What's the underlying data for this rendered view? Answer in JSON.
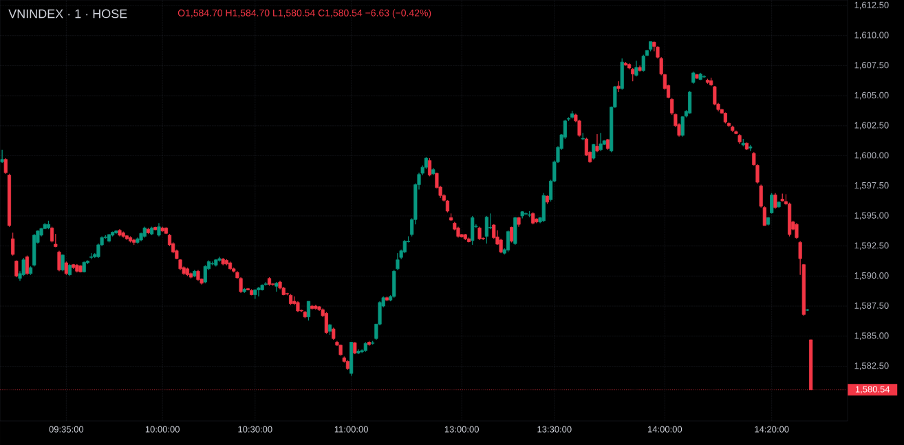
{
  "chart_data": {
    "type": "candlestick",
    "title": "VNINDEX · 1 · HOSE",
    "subtitle": "O1,584.70 H1,584.70 L1,580.54 C1,580.54 −6.63 (−0.42%)",
    "categories": [
      null,
      null,
      null,
      null,
      null,
      null,
      null,
      null,
      null,
      null,
      null,
      null,
      null,
      null,
      null,
      null,
      null,
      null,
      "09:35:00",
      null,
      null,
      null,
      null,
      null,
      null,
      null,
      null,
      null,
      null,
      null,
      null,
      null,
      null,
      null,
      null,
      null,
      null,
      null,
      null,
      null,
      null,
      null,
      null,
      null,
      null,
      "10:00:00",
      null,
      null,
      null,
      null,
      null,
      null,
      null,
      null,
      null,
      null,
      null,
      null,
      null,
      null,
      null,
      null,
      null,
      null,
      null,
      null,
      null,
      null,
      null,
      null,
      null,
      "10:30:00",
      null,
      null,
      null,
      null,
      null,
      null,
      null,
      null,
      null,
      null,
      null,
      null,
      null,
      null,
      null,
      null,
      null,
      null,
      null,
      null,
      null,
      null,
      null,
      null,
      null,
      null,
      "11:00:00",
      null,
      null,
      null,
      null,
      null,
      null,
      null,
      null,
      null,
      null,
      null,
      null,
      null,
      null,
      null,
      null,
      null,
      null,
      null,
      null,
      null,
      null,
      null,
      null,
      null,
      null,
      null,
      null,
      null,
      null,
      "13:00:00",
      null,
      null,
      null,
      null,
      null,
      null,
      null,
      null,
      null,
      null,
      null,
      null,
      null,
      null,
      null,
      null,
      null,
      null,
      null,
      null,
      null,
      null,
      null,
      null,
      null,
      "13:30:00",
      null,
      null,
      null,
      null,
      null,
      null,
      null,
      null,
      null,
      null,
      null,
      null,
      null,
      null,
      null,
      null,
      null,
      null,
      null,
      null,
      null,
      null,
      null,
      null,
      null,
      null,
      null,
      null,
      null,
      null,
      "14:00:00",
      null,
      null,
      null,
      null,
      null,
      null,
      null,
      null,
      null,
      null,
      null,
      null,
      null,
      null,
      null,
      null,
      null,
      null,
      null,
      null,
      null,
      null,
      null,
      null,
      null,
      null,
      null,
      null,
      null,
      "14:20:00",
      null,
      null,
      null,
      null,
      null,
      null,
      null,
      null,
      null,
      null,
      null
    ],
    "ohlc": [
      [
        1599.5,
        1600.5,
        1599.4,
        1599.7
      ],
      [
        1599.7,
        1599.8,
        1598.5,
        1598.6
      ],
      [
        1598.4,
        1598.5,
        1594.1,
        1594.2
      ],
      [
        1593.1,
        1593.6,
        1591.7,
        1591.8
      ],
      [
        1591.25,
        1591.3,
        1589.9,
        1590.0
      ],
      [
        1589.8,
        1590.4,
        1589.6,
        1590.2
      ],
      [
        1590.1,
        1591.5,
        1590.0,
        1591.35
      ],
      [
        1591.6,
        1591.7,
        1590.1,
        1590.2
      ],
      [
        1590.2,
        1590.8,
        1590.1,
        1590.7
      ],
      [
        1590.9,
        1593.5,
        1590.8,
        1593.4
      ],
      [
        1592.8,
        1593.8,
        1592.7,
        1593.75
      ],
      [
        1593.4,
        1594.0,
        1593.3,
        1593.95
      ],
      [
        1593.95,
        1594.4,
        1593.9,
        1594.3
      ],
      [
        1594.0,
        1594.6,
        1593.9,
        1594.3
      ],
      [
        1594.0,
        1594.1,
        1592.8,
        1592.9
      ],
      [
        1592.65,
        1593.5,
        1592.4,
        1592.45
      ],
      [
        1592.0,
        1592.1,
        1590.4,
        1590.5
      ],
      [
        1590.5,
        1591.8,
        1590.4,
        1591.75
      ],
      [
        1591.1,
        1591.2,
        1590.1,
        1590.2
      ],
      [
        1590.1,
        1591.0,
        1590.0,
        1590.9
      ],
      [
        1590.95,
        1591.0,
        1590.6,
        1590.7
      ],
      [
        1590.9,
        1591.0,
        1590.3,
        1590.4
      ],
      [
        1590.85,
        1590.9,
        1590.3,
        1590.35
      ],
      [
        1590.35,
        1591.2,
        1590.3,
        1591.15
      ],
      [
        1591.1,
        1591.3,
        1591.0,
        1591.25
      ],
      [
        1591.55,
        1591.9,
        1591.4,
        1591.6
      ],
      [
        1591.6,
        1591.9,
        1591.5,
        1591.8
      ],
      [
        1591.6,
        1592.7,
        1591.5,
        1592.6
      ],
      [
        1592.6,
        1593.3,
        1592.5,
        1593.2
      ],
      [
        1593.2,
        1593.4,
        1593.1,
        1593.25
      ],
      [
        1592.9,
        1593.5,
        1592.8,
        1593.45
      ],
      [
        1593.4,
        1593.7,
        1593.3,
        1593.65
      ],
      [
        1593.6,
        1593.8,
        1593.5,
        1593.75
      ],
      [
        1593.8,
        1593.9,
        1593.3,
        1593.4
      ],
      [
        1593.6,
        1593.7,
        1593.2,
        1593.3
      ],
      [
        1593.35,
        1593.4,
        1593.0,
        1593.1
      ],
      [
        1593.2,
        1593.3,
        1592.8,
        1592.9
      ],
      [
        1593.0,
        1593.1,
        1592.6,
        1592.8
      ],
      [
        1592.8,
        1593.2,
        1592.7,
        1593.1
      ],
      [
        1593.0,
        1593.6,
        1592.9,
        1593.55
      ],
      [
        1593.3,
        1594.1,
        1593.2,
        1594.0
      ],
      [
        1593.9,
        1594.0,
        1593.5,
        1593.6
      ],
      [
        1593.5,
        1594.1,
        1593.4,
        1594.0
      ],
      [
        1594.05,
        1594.1,
        1593.8,
        1593.85
      ],
      [
        1593.4,
        1594.4,
        1593.3,
        1594.1
      ],
      [
        1594.0,
        1594.1,
        1593.7,
        1593.75
      ],
      [
        1594.0,
        1594.05,
        1593.5,
        1593.55
      ],
      [
        1593.4,
        1593.5,
        1592.5,
        1592.6
      ],
      [
        1592.7,
        1592.8,
        1591.9,
        1592.0
      ],
      [
        1592.1,
        1592.2,
        1591.4,
        1591.45
      ],
      [
        1591.35,
        1591.4,
        1590.5,
        1590.6
      ],
      [
        1590.7,
        1590.8,
        1590.1,
        1590.2
      ],
      [
        1590.6,
        1590.7,
        1590.0,
        1590.1
      ],
      [
        1590.2,
        1590.3,
        1589.8,
        1589.9
      ],
      [
        1590.0,
        1590.5,
        1589.9,
        1590.4
      ],
      [
        1590.4,
        1590.5,
        1589.6,
        1589.7
      ],
      [
        1589.75,
        1589.8,
        1589.3,
        1589.4
      ],
      [
        1589.5,
        1590.9,
        1589.4,
        1590.8
      ],
      [
        1590.6,
        1591.3,
        1590.5,
        1591.2
      ],
      [
        1591.0,
        1591.2,
        1590.9,
        1591.05
      ],
      [
        1590.9,
        1591.4,
        1590.8,
        1591.35
      ],
      [
        1591.3,
        1591.6,
        1591.2,
        1591.45
      ],
      [
        1591.4,
        1591.5,
        1590.9,
        1591.0
      ],
      [
        1591.3,
        1591.4,
        1590.9,
        1591.0
      ],
      [
        1591.1,
        1591.2,
        1590.5,
        1590.6
      ],
      [
        1590.6,
        1590.7,
        1590.3,
        1590.4
      ],
      [
        1590.3,
        1590.4,
        1589.8,
        1589.85
      ],
      [
        1589.8,
        1589.9,
        1588.6,
        1588.7
      ],
      [
        1588.7,
        1589.0,
        1588.6,
        1588.9
      ],
      [
        1588.95,
        1589.0,
        1588.8,
        1588.85
      ],
      [
        1588.8,
        1588.9,
        1588.4,
        1588.45
      ],
      [
        1588.45,
        1588.9,
        1588.1,
        1588.85
      ],
      [
        1588.85,
        1589.1,
        1588.3,
        1589.0
      ],
      [
        1588.85,
        1589.3,
        1588.8,
        1589.25
      ],
      [
        1589.3,
        1589.5,
        1589.2,
        1589.35
      ],
      [
        1589.8,
        1589.9,
        1589.2,
        1589.3
      ],
      [
        1589.35,
        1589.4,
        1589.2,
        1589.3
      ],
      [
        1589.15,
        1589.5,
        1588.7,
        1589.4
      ],
      [
        1589.5,
        1589.6,
        1588.9,
        1589.0
      ],
      [
        1589.0,
        1589.1,
        1588.4,
        1588.45
      ],
      [
        1588.55,
        1588.6,
        1588.4,
        1588.5
      ],
      [
        1588.4,
        1588.5,
        1587.6,
        1587.7
      ],
      [
        1587.9,
        1588.3,
        1587.6,
        1587.7
      ],
      [
        1587.8,
        1587.9,
        1587.0,
        1587.1
      ],
      [
        1587.15,
        1587.2,
        1587.0,
        1587.1
      ],
      [
        1587.0,
        1587.1,
        1586.5,
        1586.6
      ],
      [
        1586.6,
        1587.9,
        1586.3,
        1587.9
      ],
      [
        1587.5,
        1587.6,
        1587.2,
        1587.3
      ],
      [
        1587.5,
        1587.6,
        1587.2,
        1587.3
      ],
      [
        1587.45,
        1587.5,
        1587.1,
        1587.2
      ],
      [
        1587.2,
        1587.3,
        1586.6,
        1586.7
      ],
      [
        1586.9,
        1587.0,
        1585.2,
        1585.3
      ],
      [
        1585.4,
        1586.0,
        1585.1,
        1585.95
      ],
      [
        1585.6,
        1585.7,
        1584.7,
        1584.8
      ],
      [
        1584.5,
        1584.6,
        1584.2,
        1584.25
      ],
      [
        1584.25,
        1584.3,
        1583.4,
        1583.45
      ],
      [
        1583.2,
        1583.3,
        1582.8,
        1582.9
      ],
      [
        1582.9,
        1583.0,
        1582.2,
        1582.3
      ],
      [
        1581.9,
        1584.5,
        1581.7,
        1584.5
      ],
      [
        1584.45,
        1584.5,
        1583.5,
        1583.6
      ],
      [
        1583.6,
        1583.9,
        1583.5,
        1583.75
      ],
      [
        1583.7,
        1583.9,
        1583.6,
        1583.8
      ],
      [
        1583.8,
        1584.5,
        1583.7,
        1584.4
      ],
      [
        1584.5,
        1584.6,
        1584.2,
        1584.3
      ],
      [
        1584.4,
        1584.6,
        1584.3,
        1584.45
      ],
      [
        1584.8,
        1586.0,
        1584.7,
        1586.0
      ],
      [
        1586.0,
        1587.9,
        1585.9,
        1587.8
      ],
      [
        1587.5,
        1588.3,
        1587.4,
        1588.2
      ],
      [
        1588.2,
        1588.3,
        1587.9,
        1588.0
      ],
      [
        1588.0,
        1588.4,
        1587.9,
        1588.3
      ],
      [
        1588.3,
        1590.5,
        1588.2,
        1590.4
      ],
      [
        1590.6,
        1591.9,
        1590.5,
        1591.35
      ],
      [
        1591.55,
        1592.2,
        1591.4,
        1592.1
      ],
      [
        1592.0,
        1593.0,
        1591.9,
        1592.9
      ],
      [
        1592.85,
        1593.3,
        1592.8,
        1592.9
      ],
      [
        1593.45,
        1594.8,
        1593.3,
        1594.7
      ],
      [
        1594.7,
        1597.7,
        1594.3,
        1597.6
      ],
      [
        1597.6,
        1598.6,
        1597.2,
        1598.45
      ],
      [
        1598.55,
        1599.2,
        1598.4,
        1599.05
      ],
      [
        1599.05,
        1599.9,
        1598.9,
        1599.8
      ],
      [
        1599.6,
        1599.8,
        1598.3,
        1598.4
      ],
      [
        1598.5,
        1599.0,
        1598.4,
        1598.85
      ],
      [
        1598.55,
        1598.6,
        1597.3,
        1597.35
      ],
      [
        1597.4,
        1597.5,
        1596.5,
        1596.7
      ],
      [
        1596.7,
        1596.8,
        1596.2,
        1596.3
      ],
      [
        1596.25,
        1596.3,
        1595.3,
        1595.4
      ],
      [
        1594.85,
        1595.2,
        1594.6,
        1594.65
      ],
      [
        1594.4,
        1594.5,
        1593.8,
        1593.9
      ],
      [
        1594.0,
        1594.1,
        1593.2,
        1593.3
      ],
      [
        1593.45,
        1593.5,
        1593.2,
        1593.25
      ],
      [
        1593.45,
        1593.5,
        1593.0,
        1593.1
      ],
      [
        1593.1,
        1593.2,
        1592.8,
        1592.85
      ],
      [
        1592.95,
        1595.0,
        1592.6,
        1594.85
      ],
      [
        1594.1,
        1594.3,
        1594.0,
        1594.15
      ],
      [
        1594.0,
        1594.1,
        1593.0,
        1593.1
      ],
      [
        1593.15,
        1593.2,
        1593.0,
        1593.1
      ],
      [
        1593.3,
        1595.0,
        1592.7,
        1594.9
      ],
      [
        1594.0,
        1595.2,
        1593.9,
        1594.05
      ],
      [
        1594.25,
        1594.3,
        1593.1,
        1593.2
      ],
      [
        1593.25,
        1593.8,
        1592.6,
        1592.65
      ],
      [
        1593.0,
        1593.1,
        1591.9,
        1592.0
      ],
      [
        1591.9,
        1592.3,
        1591.8,
        1592.2
      ],
      [
        1592.15,
        1593.8,
        1592.0,
        1593.7
      ],
      [
        1594.05,
        1594.1,
        1592.8,
        1592.9
      ],
      [
        1592.7,
        1594.9,
        1592.6,
        1594.85
      ],
      [
        1594.85,
        1594.9,
        1594.1,
        1594.3
      ],
      [
        1595.0,
        1595.4,
        1594.8,
        1595.35
      ],
      [
        1595.15,
        1595.3,
        1595.1,
        1595.2
      ],
      [
        1595.05,
        1595.4,
        1594.9,
        1595.1
      ],
      [
        1595.2,
        1595.3,
        1594.3,
        1594.4
      ],
      [
        1594.75,
        1594.8,
        1594.4,
        1594.5
      ],
      [
        1594.5,
        1594.9,
        1594.4,
        1594.85
      ],
      [
        1594.6,
        1596.9,
        1594.5,
        1596.7
      ],
      [
        1596.65,
        1596.7,
        1596.0,
        1596.15
      ],
      [
        1596.35,
        1598.0,
        1596.2,
        1597.9
      ],
      [
        1597.9,
        1599.6,
        1597.8,
        1599.5
      ],
      [
        1599.5,
        1600.8,
        1599.4,
        1600.7
      ],
      [
        1600.6,
        1601.8,
        1600.5,
        1601.75
      ],
      [
        1601.55,
        1603.0,
        1601.4,
        1602.9
      ],
      [
        1603.05,
        1603.2,
        1602.9,
        1603.1
      ],
      [
        1603.2,
        1603.75,
        1603.1,
        1603.5
      ],
      [
        1603.4,
        1603.5,
        1602.8,
        1602.9
      ],
      [
        1602.9,
        1603.0,
        1601.6,
        1601.7
      ],
      [
        1601.4,
        1601.9,
        1601.3,
        1601.45
      ],
      [
        1601.4,
        1601.5,
        1600.0,
        1600.05
      ],
      [
        1600.3,
        1600.4,
        1599.4,
        1599.5
      ],
      [
        1599.8,
        1601.0,
        1599.7,
        1600.95
      ],
      [
        1600.8,
        1601.8,
        1600.3,
        1600.4
      ],
      [
        1600.5,
        1601.9,
        1600.4,
        1601.0
      ],
      [
        1600.95,
        1601.3,
        1600.9,
        1601.25
      ],
      [
        1601.35,
        1601.4,
        1600.5,
        1600.6
      ],
      [
        1600.4,
        1604.1,
        1600.3,
        1604.05
      ],
      [
        1604.05,
        1605.8,
        1604.0,
        1605.75
      ],
      [
        1605.8,
        1606.2,
        1605.3,
        1605.6
      ],
      [
        1605.6,
        1608.1,
        1605.5,
        1607.8
      ],
      [
        1607.7,
        1607.8,
        1607.5,
        1607.55
      ],
      [
        1607.6,
        1607.7,
        1607.2,
        1607.3
      ],
      [
        1607.2,
        1607.3,
        1606.2,
        1606.8
      ],
      [
        1606.7,
        1607.9,
        1606.6,
        1607.35
      ],
      [
        1607.35,
        1607.5,
        1607.0,
        1607.1
      ],
      [
        1607.1,
        1608.4,
        1607.0,
        1608.3
      ],
      [
        1608.35,
        1608.8,
        1608.3,
        1608.75
      ],
      [
        1608.85,
        1609.5,
        1608.7,
        1609.5
      ],
      [
        1609.45,
        1609.5,
        1608.7,
        1609.1
      ],
      [
        1609.05,
        1609.1,
        1608.1,
        1608.2
      ],
      [
        1608.1,
        1608.2,
        1606.7,
        1606.8
      ],
      [
        1606.75,
        1606.8,
        1605.5,
        1605.6
      ],
      [
        1605.85,
        1605.9,
        1604.8,
        1604.85
      ],
      [
        1604.7,
        1604.8,
        1603.4,
        1603.55
      ],
      [
        1603.45,
        1603.5,
        1602.4,
        1602.5
      ],
      [
        1602.6,
        1602.7,
        1601.6,
        1601.7
      ],
      [
        1601.7,
        1603.3,
        1601.6,
        1603.25
      ],
      [
        1603.3,
        1603.8,
        1603.2,
        1603.7
      ],
      [
        1603.55,
        1605.4,
        1603.5,
        1605.3
      ],
      [
        1606.1,
        1607.0,
        1606.0,
        1606.9
      ],
      [
        1606.75,
        1606.8,
        1606.4,
        1606.45
      ],
      [
        1606.35,
        1606.9,
        1606.3,
        1606.8
      ],
      [
        1606.55,
        1606.7,
        1606.5,
        1606.6
      ],
      [
        1606.3,
        1606.4,
        1606.0,
        1606.1
      ],
      [
        1606.25,
        1606.5,
        1605.8,
        1605.9
      ],
      [
        1605.75,
        1605.8,
        1604.2,
        1604.3
      ],
      [
        1604.3,
        1604.4,
        1603.7,
        1603.85
      ],
      [
        1603.85,
        1603.9,
        1603.5,
        1603.55
      ],
      [
        1603.55,
        1603.6,
        1602.7,
        1602.8
      ],
      [
        1602.7,
        1602.8,
        1602.4,
        1602.5
      ],
      [
        1602.4,
        1602.5,
        1602.0,
        1602.1
      ],
      [
        1602.0,
        1602.1,
        1601.8,
        1601.85
      ],
      [
        1601.7,
        1601.8,
        1601.0,
        1601.15
      ],
      [
        1600.9,
        1601.4,
        1600.8,
        1601.05
      ],
      [
        1601.05,
        1601.1,
        1600.5,
        1600.55
      ],
      [
        1600.65,
        1600.9,
        1600.4,
        1600.75
      ],
      [
        1600.2,
        1600.3,
        1599.2,
        1599.25
      ],
      [
        1599.2,
        1599.3,
        1597.7,
        1597.8
      ],
      [
        1597.5,
        1597.6,
        1595.7,
        1595.8
      ],
      [
        1595.7,
        1595.8,
        1594.2,
        1594.2
      ],
      [
        1594.3,
        1594.9,
        1594.2,
        1594.85
      ],
      [
        1595.25,
        1596.9,
        1595.2,
        1596.75
      ],
      [
        1596.75,
        1596.9,
        1595.6,
        1595.7
      ],
      [
        1595.75,
        1596.2,
        1595.7,
        1596.15
      ],
      [
        1596.4,
        1596.85,
        1596.2,
        1596.25
      ],
      [
        1596.2,
        1596.8,
        1595.9,
        1596.0
      ],
      [
        1596.0,
        1596.1,
        1593.3,
        1593.45
      ],
      [
        1594.5,
        1594.6,
        1593.8,
        1593.9
      ],
      [
        1594.3,
        1594.4,
        1593.1,
        1593.2
      ],
      [
        1592.8,
        1592.9,
        1590.1,
        1591.45
      ],
      [
        1590.95,
        1591.0,
        1586.7,
        1586.8
      ],
      [
        1587.15,
        1587.25,
        1587.1,
        1587.2
      ],
      [
        1584.7,
        1584.7,
        1580.54,
        1580.54
      ]
    ],
    "colors": [
      "#089981",
      "#f23645",
      "#f23645",
      "#f23645",
      "#f23645",
      "#089981",
      "#089981",
      "#f23645",
      "#089981",
      "#089981",
      "#089981",
      "#089981",
      "#089981",
      "#089981",
      "#f23645",
      "#f23645",
      "#f23645",
      "#089981",
      "#f23645",
      "#089981",
      "#f23645",
      "#f23645",
      "#f23645",
      "#089981",
      "#089981",
      "#089981",
      "#089981",
      "#089981",
      "#089981",
      "#089981",
      "#089981",
      "#089981",
      "#089981",
      "#f23645",
      "#f23645",
      "#f23645",
      "#f23645",
      "#f23645",
      "#089981",
      "#089981",
      "#089981",
      "#f23645",
      "#089981",
      "#f23645",
      "#089981",
      "#f23645",
      "#f23645",
      "#f23645",
      "#f23645",
      "#f23645",
      "#f23645",
      "#f23645",
      "#f23645",
      "#f23645",
      "#089981",
      "#f23645",
      "#f23645",
      "#089981",
      "#089981",
      "#089981",
      "#089981",
      "#089981",
      "#f23645",
      "#f23645",
      "#f23645",
      "#f23645",
      "#f23645",
      "#f23645",
      "#089981",
      "#f23645",
      "#f23645",
      "#089981",
      "#089981",
      "#089981",
      "#089981",
      "#f23645",
      "#f23645",
      "#089981",
      "#f23645",
      "#f23645",
      "#f23645",
      "#f23645",
      "#f23645",
      "#f23645",
      "#f23645",
      "#f23645",
      "#089981",
      "#f23645",
      "#f23645",
      "#f23645",
      "#f23645",
      "#f23645",
      "#089981",
      "#f23645",
      "#f23645",
      "#f23645",
      "#f23645",
      "#f23645",
      "#089981",
      "#f23645",
      "#089981",
      "#089981",
      "#089981",
      "#f23645",
      "#089981",
      "#089981",
      "#089981",
      "#089981",
      "#f23645",
      "#089981",
      "#089981",
      "#089981",
      "#089981",
      "#089981",
      "#089981",
      "#089981",
      "#089981",
      "#089981",
      "#089981",
      "#089981",
      "#f23645",
      "#089981",
      "#f23645",
      "#f23645",
      "#f23645",
      "#f23645",
      "#f23645",
      "#f23645",
      "#f23645",
      "#f23645",
      "#f23645",
      "#f23645",
      "#089981",
      "#089981",
      "#f23645",
      "#f23645",
      "#089981",
      "#089981",
      "#f23645",
      "#f23645",
      "#f23645",
      "#089981",
      "#089981",
      "#f23645",
      "#089981",
      "#f23645",
      "#089981",
      "#089981",
      "#089981",
      "#f23645",
      "#f23645",
      "#089981",
      "#089981",
      "#f23645",
      "#089981",
      "#089981",
      "#089981",
      "#089981",
      "#089981",
      "#089981",
      "#089981",
      "#f23645",
      "#f23645",
      "#089981",
      "#f23645",
      "#f23645",
      "#089981",
      "#f23645",
      "#089981",
      "#089981",
      "#f23645",
      "#089981",
      "#089981",
      "#f23645",
      "#089981",
      "#f23645",
      "#f23645",
      "#f23645",
      "#089981",
      "#f23645",
      "#089981",
      "#089981",
      "#089981",
      "#f23645",
      "#f23645",
      "#f23645",
      "#f23645",
      "#f23645",
      "#f23645",
      "#f23645",
      "#f23645",
      "#089981",
      "#089981",
      "#089981",
      "#089981",
      "#f23645",
      "#089981",
      "#089981",
      "#f23645",
      "#f23645",
      "#f23645",
      "#f23645",
      "#f23645",
      "#f23645",
      "#f23645",
      "#f23645",
      "#f23645",
      "#f23645",
      "#089981",
      "#f23645",
      "#089981",
      "#f23645",
      "#f23645",
      "#f23645",
      "#f23645",
      "#089981",
      "#089981",
      "#f23645",
      "#089981",
      "#f23645",
      "#f23645",
      "#f23645",
      "#f23645",
      "#f23645",
      "#f23645",
      "#f23645",
      "#089981",
      "#f23645"
    ],
    "ylim": [
      1577.95,
      1612.96
    ],
    "yticks": [
      {
        "value": 1582.5,
        "label": "1,582.50"
      },
      {
        "value": 1585,
        "label": "1,585.00"
      },
      {
        "value": 1587.5,
        "label": "1,587.50"
      },
      {
        "value": 1590,
        "label": "1,590.00"
      },
      {
        "value": 1592.5,
        "label": "1,592.50"
      },
      {
        "value": 1595,
        "label": "1,595.00"
      },
      {
        "value": 1597.5,
        "label": "1,597.50"
      },
      {
        "value": 1600,
        "label": "1,600.00"
      },
      {
        "value": 1602.5,
        "label": "1,602.50"
      },
      {
        "value": 1605,
        "label": "1,605.00"
      },
      {
        "value": 1607.5,
        "label": "1,607.50"
      },
      {
        "value": 1610,
        "label": "1,610.00"
      },
      {
        "value": 1612.5,
        "label": "1,612.50"
      }
    ],
    "ref_lines": [
      {
        "axis": "y",
        "value": 1580.54,
        "label": "1,580.54",
        "color": "#f23645",
        "line_style": "dotted"
      }
    ],
    "grid": true
  }
}
